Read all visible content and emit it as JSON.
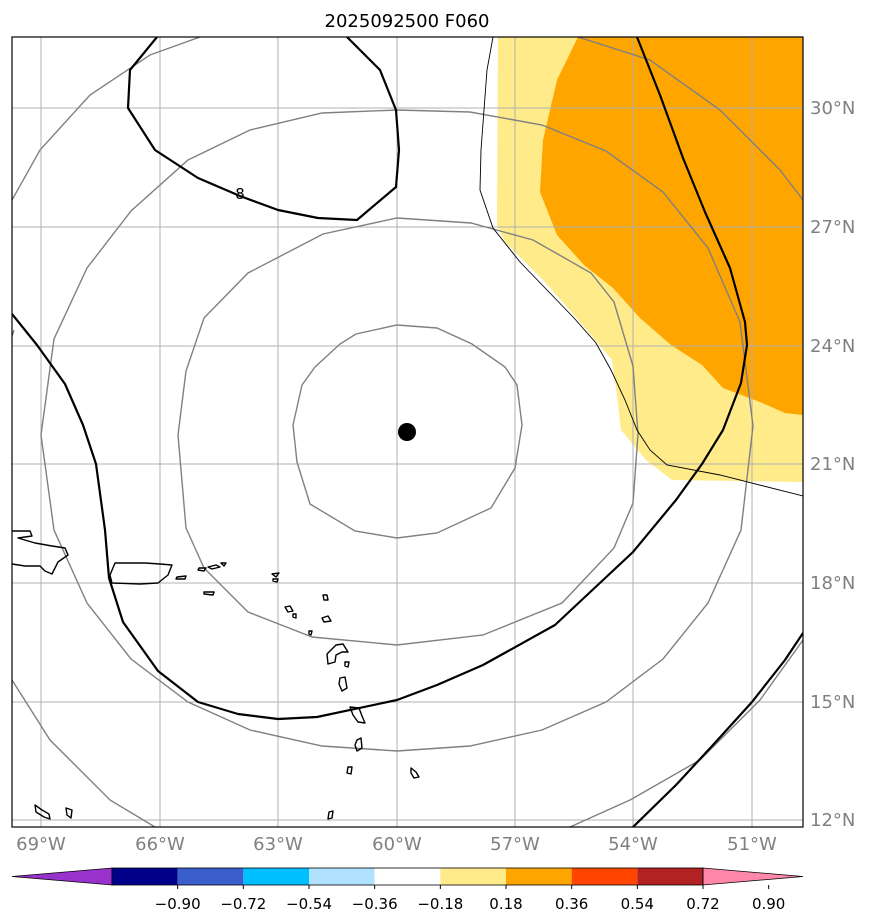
{
  "title": "2025092500 F060",
  "map": {
    "x_tick_labels": [
      "69°W",
      "66°W",
      "63°W",
      "60°W",
      "57°W",
      "54°W",
      "51°W"
    ],
    "y_tick_labels": [
      "30°N",
      "27°N",
      "24°N",
      "21°N",
      "18°N",
      "15°N",
      "12°N"
    ],
    "contour_label": "8",
    "center_marker": "storm-center",
    "ring_color": "#808080"
  },
  "colorbar": {
    "ticks": [
      "−0.90",
      "−0.72",
      "−0.54",
      "−0.36",
      "−0.18",
      "0.18",
      "0.36",
      "0.54",
      "0.72",
      "0.90"
    ],
    "colors": [
      "#9932cc",
      "#00008b",
      "#3a5fcd",
      "#00bfff",
      "#b0e2ff",
      "#ffffff",
      "#ffeb8a",
      "#ffa500",
      "#ff4500",
      "#b22222",
      "#ff88aa"
    ]
  }
}
